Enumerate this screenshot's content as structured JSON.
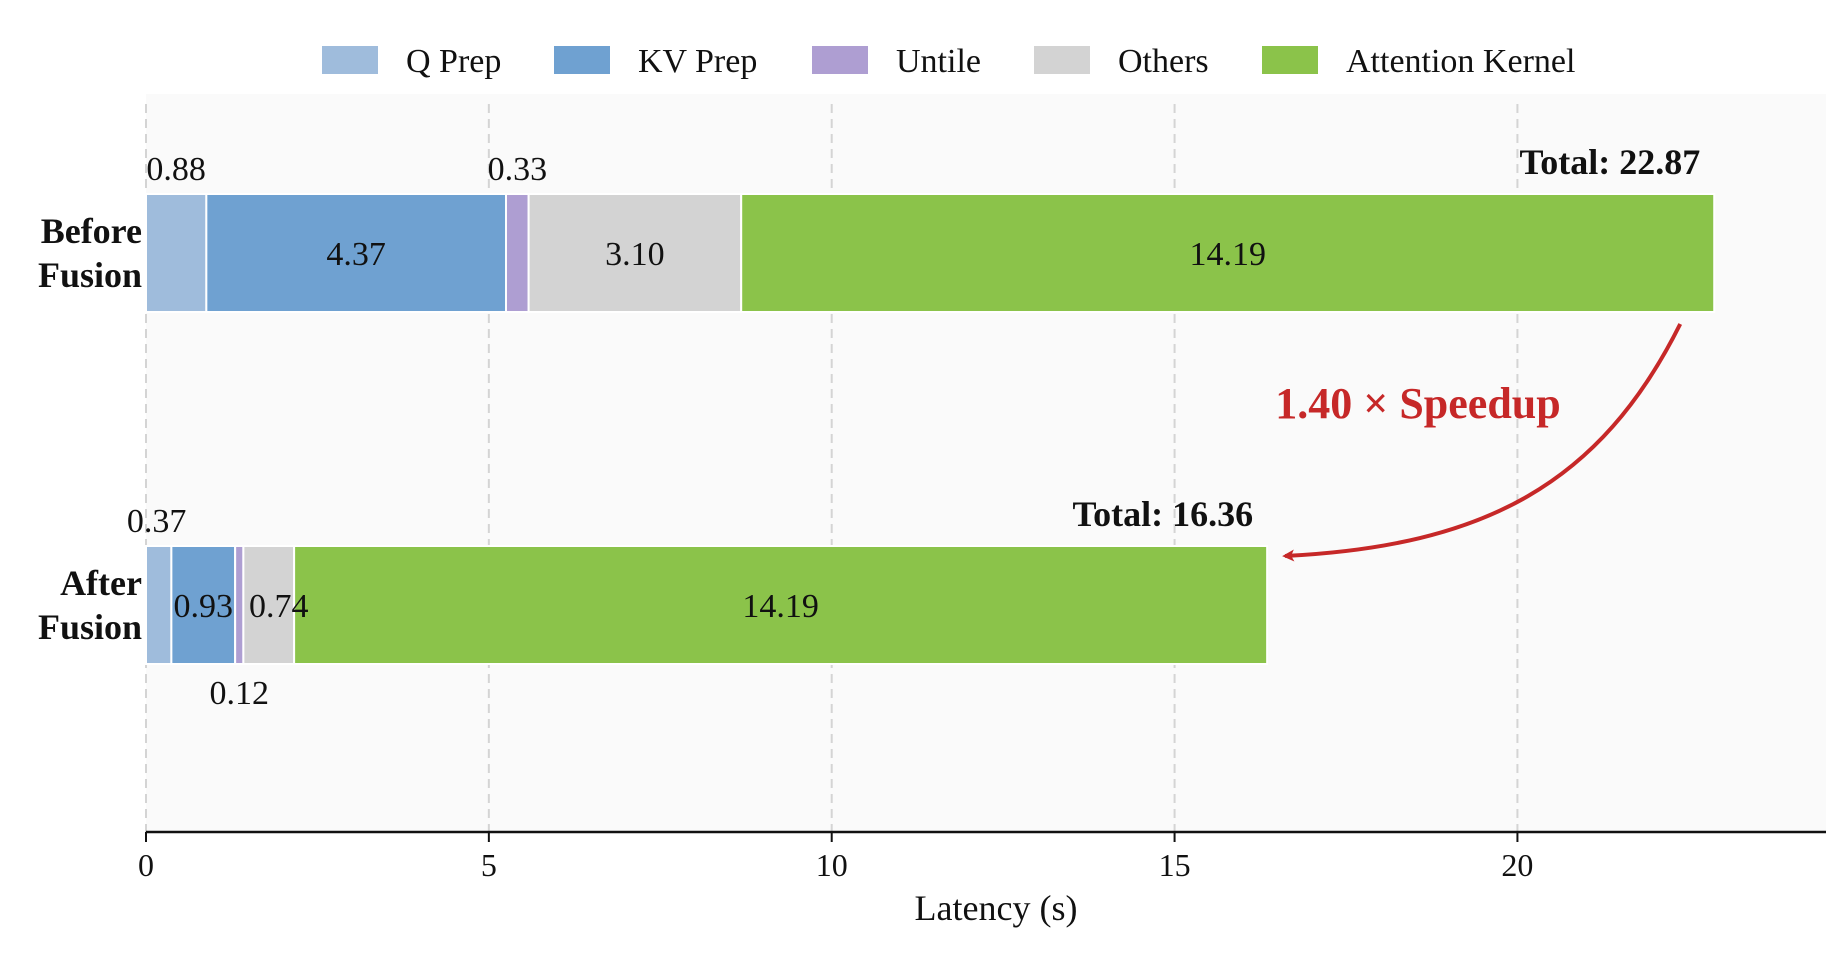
{
  "chart_data": {
    "type": "bar",
    "orientation": "horizontal",
    "stacked": true,
    "xlabel": "Latency (s)",
    "xlim": [
      0,
      24.5
    ],
    "xticks": [
      0,
      5,
      10,
      15,
      20
    ],
    "grid": "vertical-dashed",
    "legend_position": "top",
    "categories": [
      {
        "line1": "Before",
        "line2": "Fusion"
      },
      {
        "line1": "After",
        "line2": "Fusion"
      }
    ],
    "series": [
      {
        "name": "Q Prep",
        "color": "#9fbcdc",
        "values": [
          0.88,
          0.37
        ],
        "value_labels": [
          "0.88",
          "0.37"
        ]
      },
      {
        "name": "KV Prep",
        "color": "#6fa1d1",
        "values": [
          4.37,
          0.93
        ],
        "value_labels": [
          "4.37",
          "0.93"
        ]
      },
      {
        "name": "Untile",
        "color": "#ae9ed2",
        "values": [
          0.33,
          0.12
        ],
        "value_labels": [
          "0.33",
          "0.12"
        ]
      },
      {
        "name": "Others",
        "color": "#d3d3d3",
        "values": [
          3.1,
          0.74
        ],
        "value_labels": [
          "3.10",
          "0.74"
        ]
      },
      {
        "name": "Attention Kernel",
        "color": "#8bc34a",
        "values": [
          14.19,
          14.19
        ],
        "value_labels": [
          "14.19",
          "14.19"
        ]
      }
    ],
    "totals": [
      {
        "prefix": "Total",
        "value": "22.87"
      },
      {
        "prefix": "Total",
        "value": "16.36"
      }
    ],
    "annotation": {
      "text": "1.40 × Speedup",
      "color": "#c62828",
      "from": "Before Fusion",
      "to": "After Fusion"
    }
  }
}
